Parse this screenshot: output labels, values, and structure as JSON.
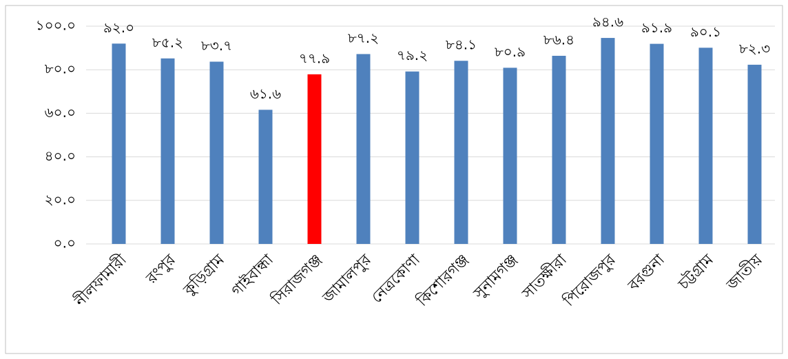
{
  "chart_data": {
    "type": "bar",
    "categories": [
      "নীলফামারী",
      "রংপুর",
      "কুড়িগ্রাম",
      "গাইবান্ধা",
      "সিরাজগঞ্জ",
      "জামালপুর",
      "নেত্রকোণা",
      "কিশোরগঞ্জ",
      "সুনামগঞ্জ",
      "সাতক্ষীরা",
      "পিরোজপুর",
      "বরগুনা",
      "চট্টগ্রাম",
      "জাতীয়"
    ],
    "values": [
      92.0,
      85.2,
      83.7,
      61.6,
      77.9,
      87.2,
      79.2,
      84.1,
      80.9,
      86.4,
      94.6,
      91.9,
      90.1,
      82.3
    ],
    "value_labels": [
      "৯২.০",
      "৮৫.২",
      "৮৩.৭",
      "৬১.৬",
      "৭৭.৯",
      "৮৭.২",
      "৭৯.২",
      "৮৪.১",
      "৮০.৯",
      "৮৬.৪",
      "৯৪.৬",
      "৯১.৯",
      "৯০.১",
      "৮২.৩"
    ],
    "colors": [
      "#4f81bd",
      "#4f81bd",
      "#4f81bd",
      "#4f81bd",
      "#ff0000",
      "#4f81bd",
      "#4f81bd",
      "#4f81bd",
      "#4f81bd",
      "#4f81bd",
      "#4f81bd",
      "#4f81bd",
      "#4f81bd",
      "#4f81bd"
    ],
    "ylim": [
      0,
      100
    ],
    "yticks": [
      {
        "value": 0,
        "label": "০.০"
      },
      {
        "value": 20,
        "label": "২০.০"
      },
      {
        "value": 40,
        "label": "৪০.০"
      },
      {
        "value": 60,
        "label": "৬০.০"
      },
      {
        "value": 80,
        "label": "৮০.০"
      },
      {
        "value": 100,
        "label": "১০০.০"
      }
    ],
    "grid": true
  }
}
